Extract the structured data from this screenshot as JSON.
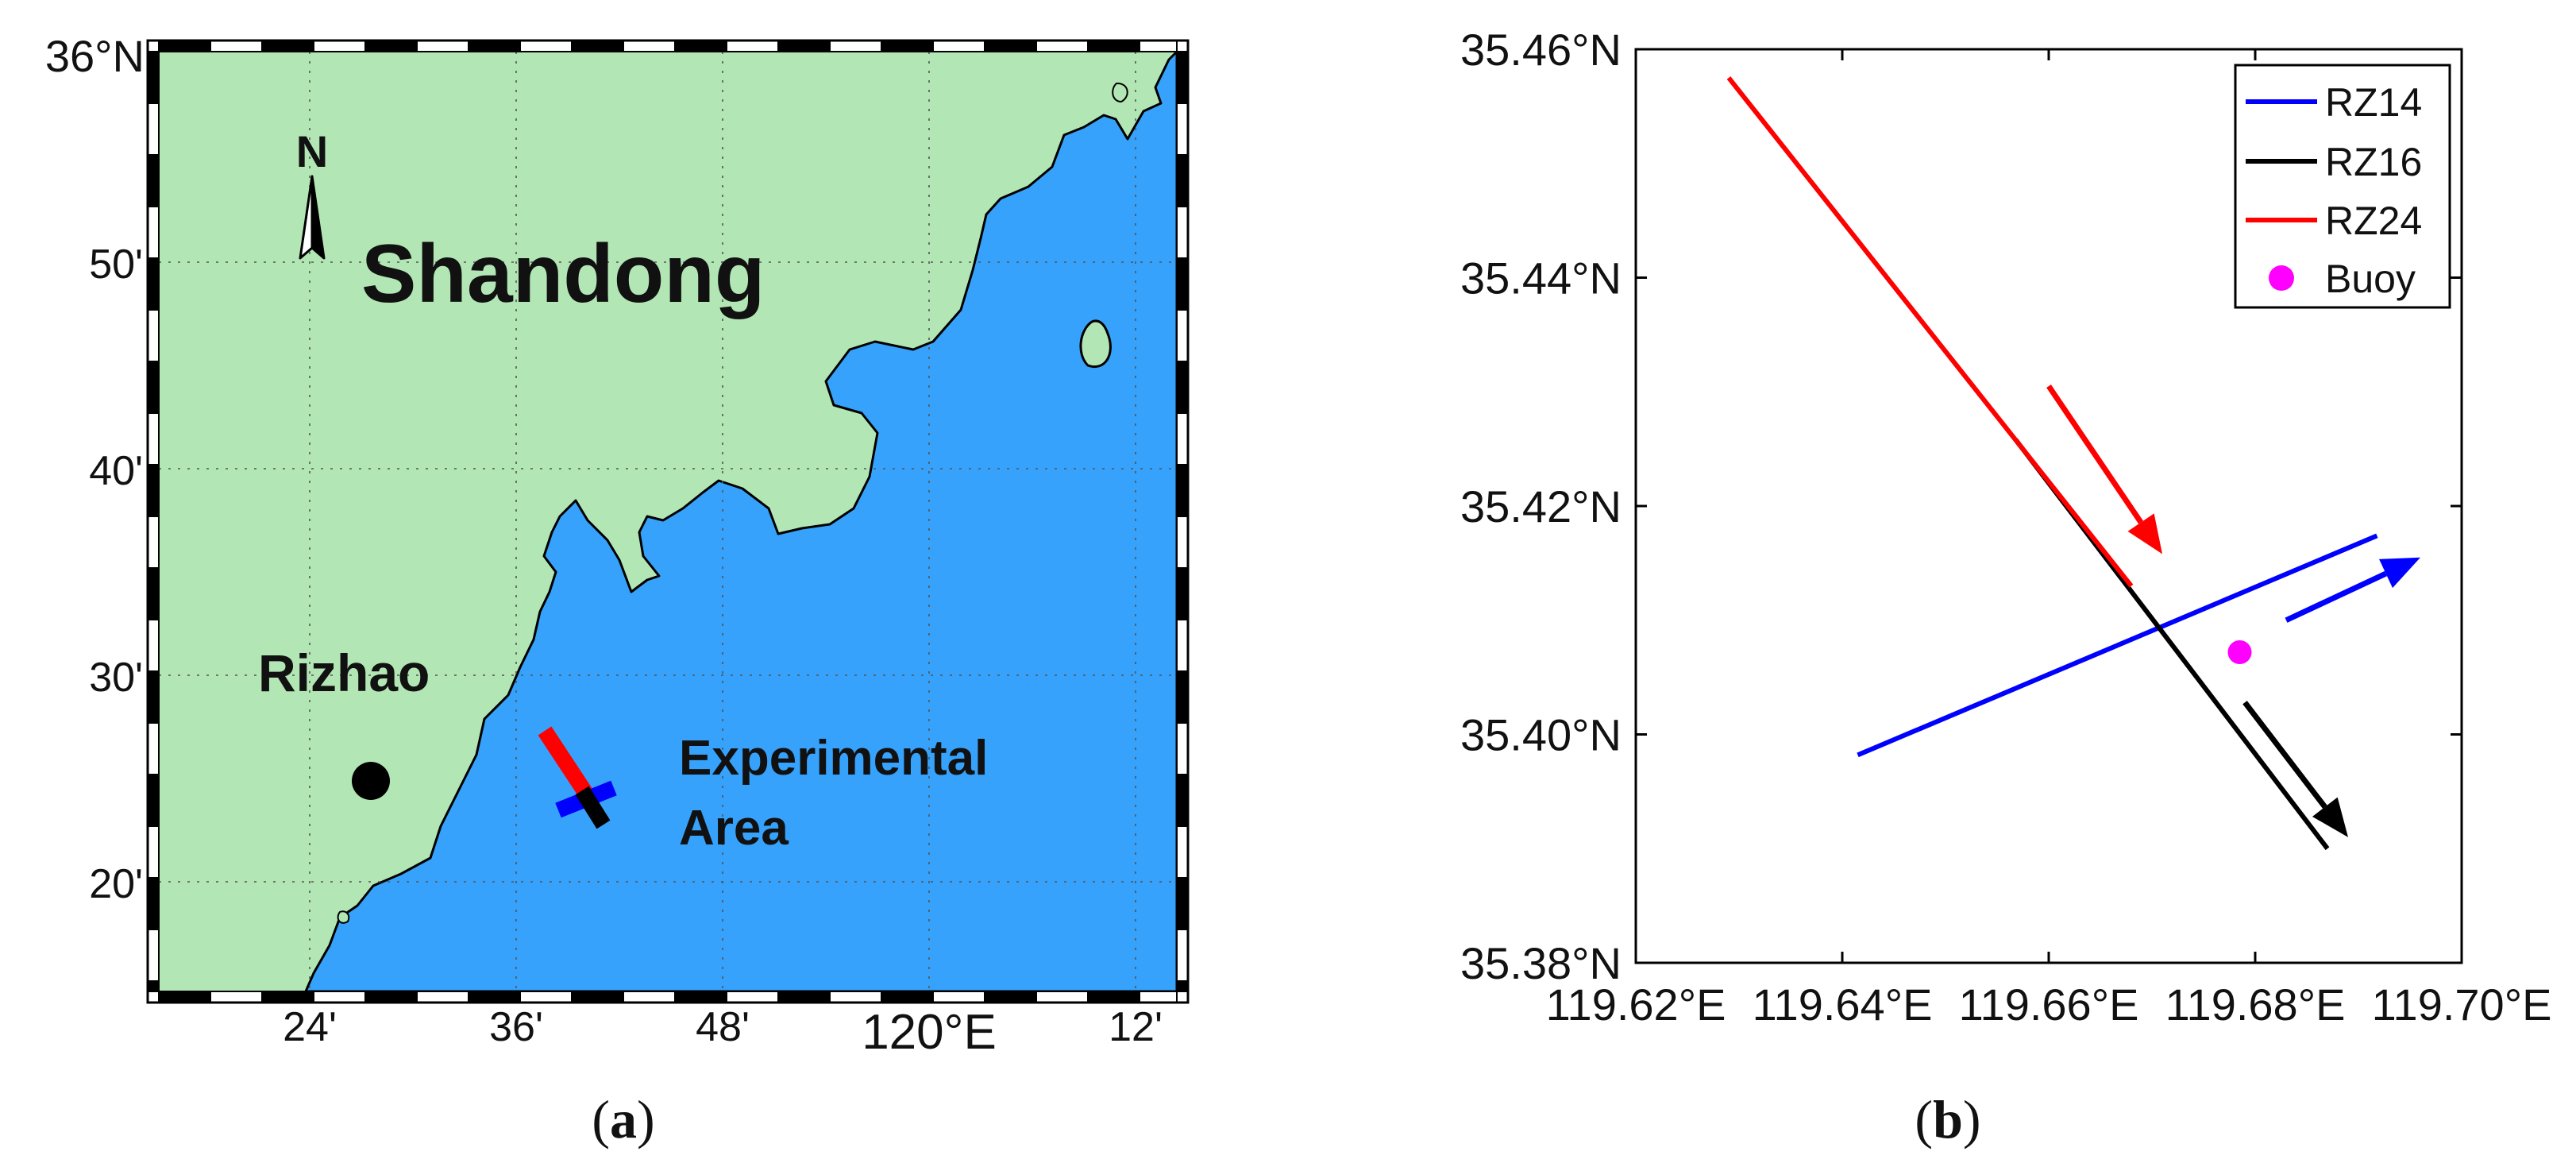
{
  "panel_a": {
    "caption_open": "(",
    "caption_letter": "a",
    "caption_close": ")",
    "title_lat": "36°N",
    "lat_labels": [
      "50'",
      "40'",
      "30'",
      "20'"
    ],
    "lon_labels": [
      "24'",
      "36'",
      "48'",
      "120°E",
      "12'"
    ],
    "north_letter": "N",
    "region_label": "Shandong",
    "city_label": "Rizhao",
    "area_label_line1": "Experimental",
    "area_label_line2": "Area",
    "colors": {
      "land": "#b3e6b5",
      "sea": "#36a2fb",
      "coast": "#000000"
    }
  },
  "panel_b": {
    "caption_open": "(",
    "caption_letter": "b",
    "caption_close": ")",
    "legend": [
      {
        "label": "RZ14",
        "color": "#0000ff",
        "kind": "line"
      },
      {
        "label": "RZ16",
        "color": "#000000",
        "kind": "line"
      },
      {
        "label": "RZ24",
        "color": "#ff0000",
        "kind": "line"
      },
      {
        "label": "Buoy",
        "color": "#ff00ff",
        "kind": "marker"
      }
    ]
  },
  "chart_data": {
    "type": "line",
    "title": "",
    "xlabel": "",
    "ylabel": "",
    "xlim": [
      119.62,
      119.7
    ],
    "ylim": [
      35.38,
      35.46
    ],
    "x_ticks": [
      119.62,
      119.64,
      119.66,
      119.68,
      119.7
    ],
    "y_ticks": [
      35.38,
      35.4,
      35.42,
      35.44,
      35.46
    ],
    "x_tick_labels": [
      "119.62°E",
      "119.64°E",
      "119.66°E",
      "119.68°E",
      "119.70°E"
    ],
    "y_tick_labels": [
      "35.38°N",
      "35.40°N",
      "35.42°N",
      "35.44°N",
      "35.46°N"
    ],
    "series": [
      {
        "name": "RZ14",
        "color": "#0000ff",
        "points": [
          [
            119.6415,
            35.3982
          ],
          [
            119.6918,
            35.4174
          ]
        ]
      },
      {
        "name": "RZ16",
        "color": "#000000",
        "points": [
          [
            119.6568,
            35.4258
          ],
          [
            119.687,
            35.39
          ]
        ]
      },
      {
        "name": "RZ24",
        "color": "#ff0000",
        "points": [
          [
            119.629,
            35.4575
          ],
          [
            119.668,
            35.413
          ]
        ]
      },
      {
        "name": "Buoy",
        "color": "#ff00ff",
        "points": [
          [
            119.6785,
            35.4072
          ]
        ]
      }
    ],
    "direction_arrows": [
      {
        "series": "RZ24",
        "color": "#ff0000",
        "from": [
          119.66,
          35.4305
        ],
        "to": [
          119.671,
          35.4158
        ]
      },
      {
        "series": "RZ14",
        "color": "#0000ff",
        "from": [
          119.683,
          35.41
        ],
        "to": [
          119.696,
          35.4155
        ]
      },
      {
        "series": "RZ16",
        "color": "#000000",
        "from": [
          119.679,
          35.4028
        ],
        "to": [
          119.689,
          35.391
        ]
      }
    ],
    "legend_position": "top-right"
  }
}
